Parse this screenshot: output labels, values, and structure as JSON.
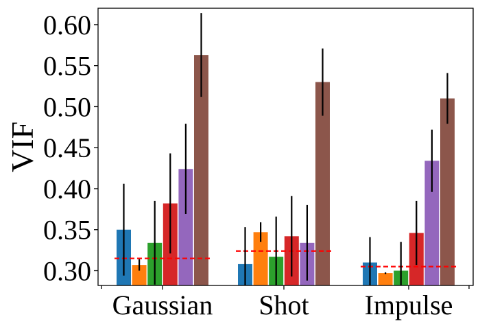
{
  "chart_data": {
    "type": "bar",
    "ylabel": "VIF",
    "xlabel": "",
    "title": "",
    "ylim": [
      0.282,
      0.62
    ],
    "yticks": [
      0.3,
      0.35,
      0.4,
      0.45,
      0.5,
      0.55,
      0.6
    ],
    "ytick_labels": [
      "0.30",
      "0.35",
      "0.40",
      "0.45",
      "0.50",
      "0.55",
      "0.60"
    ],
    "grid": false,
    "legend": "none",
    "categories": [
      "Gaussian",
      "Shot",
      "Impulse"
    ],
    "series": [
      {
        "color": "#1f77b4",
        "values": [
          0.35,
          0.308,
          0.31
        ],
        "errors": [
          0.056,
          0.045,
          0.031
        ]
      },
      {
        "color": "#ff7f0e",
        "values": [
          0.307,
          0.347,
          0.297
        ],
        "errors": [
          0.007,
          0.012,
          0.001
        ]
      },
      {
        "color": "#2ca02c",
        "values": [
          0.334,
          0.317,
          0.3
        ],
        "errors": [
          0.051,
          0.049,
          0.035
        ]
      },
      {
        "color": "#d62728",
        "values": [
          0.382,
          0.342,
          0.346
        ],
        "errors": [
          0.061,
          0.049,
          0.039
        ]
      },
      {
        "color": "#9467bd",
        "values": [
          0.424,
          0.334,
          0.434
        ],
        "errors": [
          0.055,
          0.046,
          0.038
        ]
      },
      {
        "color": "#8c564b",
        "values": [
          0.563,
          0.53,
          0.51
        ],
        "errors": [
          0.051,
          0.041,
          0.031
        ]
      }
    ],
    "baselines": {
      "color": "#ff0000",
      "style": "dashed",
      "values": [
        0.315,
        0.324,
        0.305
      ]
    }
  }
}
